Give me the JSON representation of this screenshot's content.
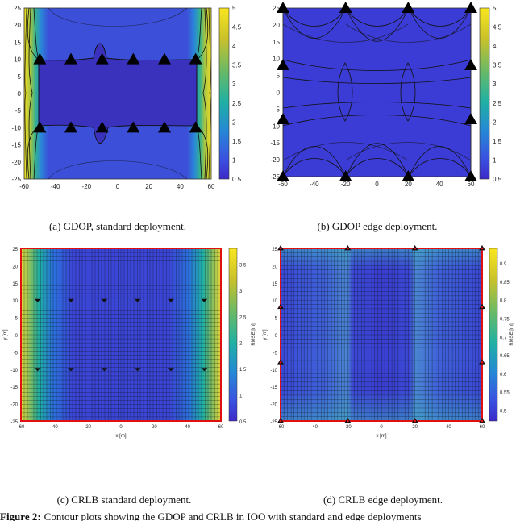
{
  "figure": {
    "caption_label": "Figure 2:",
    "caption_text": "Contour plots showing the GDOP and CRLB in IOO with standard and edge deployments"
  },
  "chart_data": [
    {
      "id": "a",
      "type": "heatmap",
      "caption": "(a) GDOP, standard deployment.",
      "xlim": [
        -60,
        60
      ],
      "ylim": [
        -25,
        25
      ],
      "xticks": [
        "-60",
        "-40",
        "-20",
        "0",
        "20",
        "40",
        "60"
      ],
      "yticks": [
        "25",
        "20",
        "15",
        "10",
        "5",
        "0",
        "-5",
        "-10",
        "-15",
        "-20",
        "-25"
      ],
      "colorbar": {
        "range": [
          0.5,
          5
        ],
        "ticks": [
          "5",
          "4.5",
          "4",
          "3.5",
          "3",
          "2.5",
          "2",
          "1.5",
          "1",
          "0.5"
        ]
      },
      "anchors": [
        [
          -50,
          10
        ],
        [
          -30,
          10
        ],
        [
          -10,
          10
        ],
        [
          10,
          10
        ],
        [
          30,
          10
        ],
        [
          50,
          10
        ],
        [
          -50,
          -10
        ],
        [
          -30,
          -10
        ],
        [
          -10,
          -10
        ],
        [
          10,
          -10
        ],
        [
          30,
          -10
        ],
        [
          50,
          -10
        ]
      ]
    },
    {
      "id": "b",
      "type": "heatmap",
      "caption": "(b) GDOP edge deployment.",
      "xlim": [
        -60,
        60
      ],
      "ylim": [
        -25,
        25
      ],
      "xticks": [
        "-60",
        "-40",
        "-20",
        "0",
        "20",
        "40",
        "60"
      ],
      "yticks": [
        "25",
        "20",
        "15",
        "10",
        "5",
        "0",
        "-5",
        "-10",
        "-15",
        "-20",
        "-25"
      ],
      "colorbar": {
        "range": [
          0.5,
          5
        ],
        "ticks": [
          "5",
          "4.5",
          "4",
          "3.5",
          "3",
          "2.5",
          "2",
          "1.5",
          "1",
          "0.5"
        ]
      },
      "anchors": [
        [
          -60,
          25
        ],
        [
          -20,
          25
        ],
        [
          20,
          25
        ],
        [
          60,
          25
        ],
        [
          -60,
          8
        ],
        [
          60,
          8
        ],
        [
          -60,
          -8
        ],
        [
          60,
          -8
        ],
        [
          -60,
          -25
        ],
        [
          -20,
          -25
        ],
        [
          20,
          -25
        ],
        [
          60,
          -25
        ]
      ]
    },
    {
      "id": "c",
      "type": "heatmap",
      "caption": "(c) CRLB standard deployment.",
      "xlabel": "x [m]",
      "ylabel": "y [m]",
      "xlim": [
        -60,
        60
      ],
      "ylim": [
        -25,
        25
      ],
      "xticks": [
        "-60",
        "-40",
        "-20",
        "0",
        "20",
        "40",
        "60"
      ],
      "yticks": [
        "25",
        "20",
        "15",
        "10",
        "5",
        "0",
        "-5",
        "-10",
        "-15",
        "-20",
        "-25"
      ],
      "colorbar": {
        "label": "RMSE [m]",
        "range": [
          0.5,
          3.8
        ],
        "ticks": [
          "3.5",
          "3",
          "2.5",
          "2",
          "1.5",
          "1",
          "0.5"
        ]
      },
      "anchors": [
        [
          -50,
          10
        ],
        [
          -30,
          10
        ],
        [
          -10,
          10
        ],
        [
          10,
          10
        ],
        [
          30,
          10
        ],
        [
          50,
          10
        ],
        [
          -50,
          -10
        ],
        [
          -30,
          -10
        ],
        [
          -10,
          -10
        ],
        [
          10,
          -10
        ],
        [
          30,
          -10
        ],
        [
          50,
          -10
        ]
      ]
    },
    {
      "id": "d",
      "type": "heatmap",
      "caption": "(d) CRLB edge deployment.",
      "xlabel": "x [m]",
      "ylabel": "y [m]",
      "xlim": [
        -60,
        60
      ],
      "ylim": [
        -25,
        25
      ],
      "xticks": [
        "-60",
        "-40",
        "-20",
        "0",
        "20",
        "40",
        "60"
      ],
      "yticks": [
        "25",
        "20",
        "15",
        "10",
        "5",
        "0",
        "-5",
        "-10",
        "-15",
        "-20",
        "-25"
      ],
      "colorbar": {
        "label": "RMSE [m]",
        "range": [
          0.47,
          0.94
        ],
        "ticks": [
          "0.9",
          "0.85",
          "0.8",
          "0.75",
          "0.7",
          "0.65",
          "0.6",
          "0.55",
          "0.5"
        ]
      },
      "anchors": [
        [
          -60,
          25
        ],
        [
          -20,
          25
        ],
        [
          20,
          25
        ],
        [
          60,
          25
        ],
        [
          -60,
          8
        ],
        [
          60,
          8
        ],
        [
          -60,
          -8
        ],
        [
          60,
          -8
        ],
        [
          -60,
          -25
        ],
        [
          -20,
          -25
        ],
        [
          20,
          -25
        ],
        [
          60,
          -25
        ]
      ]
    }
  ],
  "colors": {
    "base": "#3b3fd6",
    "deep": "#3a2fb8",
    "contour": "#111111",
    "border_red": "#e01010",
    "cb_top": "#f7e51e",
    "cb_mid": "#2ba99a",
    "cb_bot": "#3b2fd0"
  }
}
